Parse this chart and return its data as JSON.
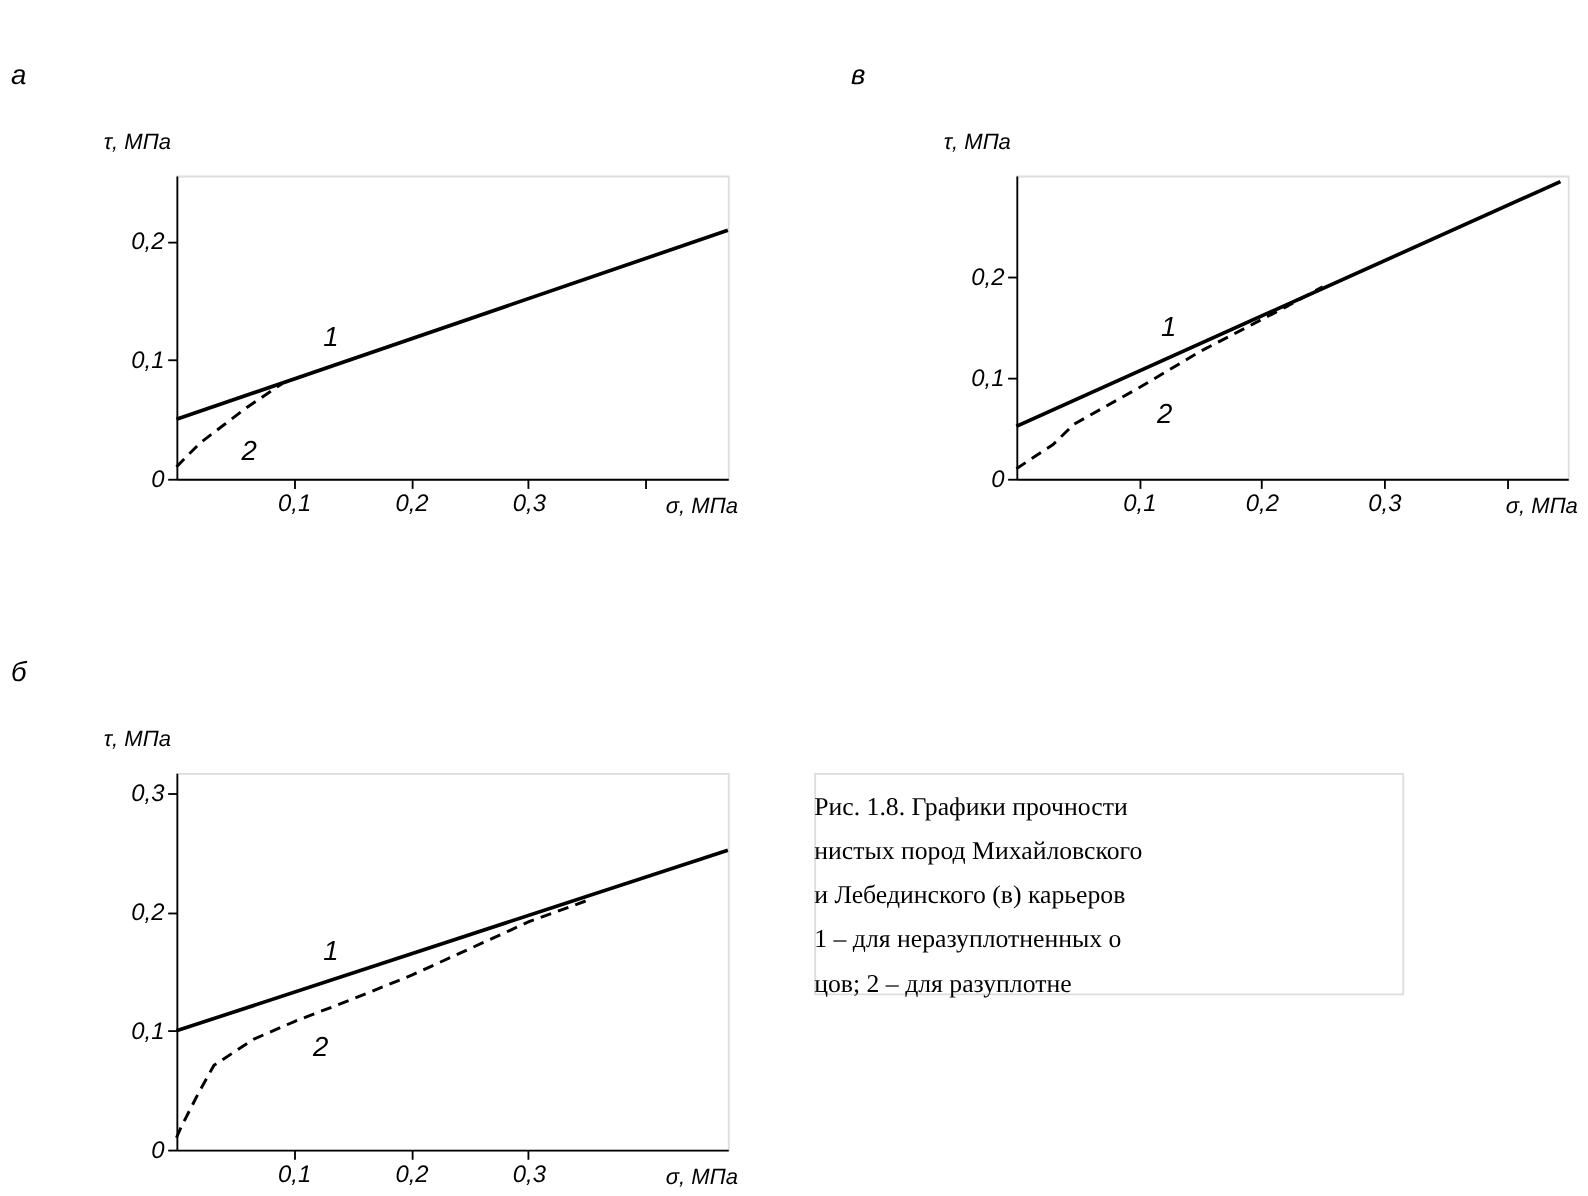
{
  "chart_data": [
    {
      "type": "line",
      "title": "а",
      "xlabel": "σ, МПа",
      "ylabel": "τ, МПа",
      "xlim": [
        0,
        0.47
      ],
      "ylim": [
        0,
        0.255
      ],
      "xticks": [
        {
          "value": 0.1,
          "label": "0,1"
        },
        {
          "value": 0.2,
          "label": "0,2"
        },
        {
          "value": 0.3,
          "label": "0,3"
        },
        {
          "value": 0.4,
          "label": null
        }
      ],
      "yticks": [
        0,
        {
          "value": 0.1,
          "label": "0,1"
        },
        {
          "value": 0.2,
          "label": "0,2"
        }
      ],
      "grid": false,
      "series": [
        {
          "name": "1",
          "color": "#000000",
          "line_style": "solid",
          "x": [
            0,
            0.47
          ],
          "values": [
            0.05,
            0.209
          ]
        },
        {
          "name": "2",
          "color": "#000000",
          "line_style": "dashed",
          "x": [
            0,
            0.01,
            0.02,
            0.04,
            0.06,
            0.09
          ],
          "values": [
            0.01,
            0.02,
            0.03,
            0.045,
            0.06,
            0.08
          ]
        }
      ]
    },
    {
      "type": "line",
      "title": "в",
      "xlabel": "σ, МПа",
      "ylabel": "τ, МПа",
      "xlim": [
        0,
        0.45
      ],
      "ylim": [
        0,
        0.3
      ],
      "xticks": [
        {
          "value": 0.1,
          "label": "0,1"
        },
        {
          "value": 0.2,
          "label": "0,2"
        },
        {
          "value": 0.3,
          "label": "0,3"
        },
        {
          "value": 0.4,
          "label": null
        }
      ],
      "yticks": [
        0,
        {
          "value": 0.1,
          "label": "0,1"
        },
        {
          "value": 0.2,
          "label": "0,2"
        }
      ],
      "grid": false,
      "series": [
        {
          "name": "1",
          "color": "#000000",
          "line_style": "solid",
          "x": [
            0,
            0.444
          ],
          "values": [
            0.052,
            0.294
          ]
        },
        {
          "name": "2",
          "color": "#000000",
          "line_style": "dashed",
          "x": [
            0,
            0.01,
            0.03,
            0.047,
            0.1,
            0.15,
            0.22,
            0.25
          ],
          "values": [
            0.01,
            0.018,
            0.034,
            0.054,
            0.09,
            0.126,
            0.17,
            0.19
          ]
        }
      ]
    },
    {
      "type": "line",
      "title": "б",
      "xlabel": "σ, МПа",
      "ylabel": "τ, МПа",
      "xlim": [
        0,
        0.47
      ],
      "ylim": [
        0,
        0.317
      ],
      "xticks": [
        {
          "value": 0.1,
          "label": "0,1"
        },
        {
          "value": 0.2,
          "label": "0,2"
        },
        {
          "value": 0.3,
          "label": "0,3"
        }
      ],
      "yticks": [
        0,
        {
          "value": 0.1,
          "label": "0,1"
        },
        {
          "value": 0.2,
          "label": "0,2"
        },
        {
          "value": 0.3,
          "label": "0,3"
        }
      ],
      "grid": false,
      "series": [
        {
          "name": "1",
          "color": "#000000",
          "line_style": "solid",
          "x": [
            0,
            0.47
          ],
          "values": [
            0.1,
            0.252
          ]
        },
        {
          "name": "2",
          "color": "#000000",
          "line_style": "dashed",
          "x": [
            0,
            0.004,
            0.019,
            0.032,
            0.066,
            0.101,
            0.151,
            0.201,
            0.301,
            0.351
          ],
          "values": [
            0.01,
            0.019,
            0.048,
            0.071,
            0.093,
            0.108,
            0.127,
            0.147,
            0.192,
            0.21
          ]
        }
      ]
    },
    {
      "type": "other",
      "annotations": [
        "Рис. 1.8. Графики прочности",
        "нистых пород Михайловского",
        "и Лебединского (в) карьеров",
        "1 – для неразуплотненных о",
        "цов; 2 – для разуплотне"
      ]
    }
  ]
}
